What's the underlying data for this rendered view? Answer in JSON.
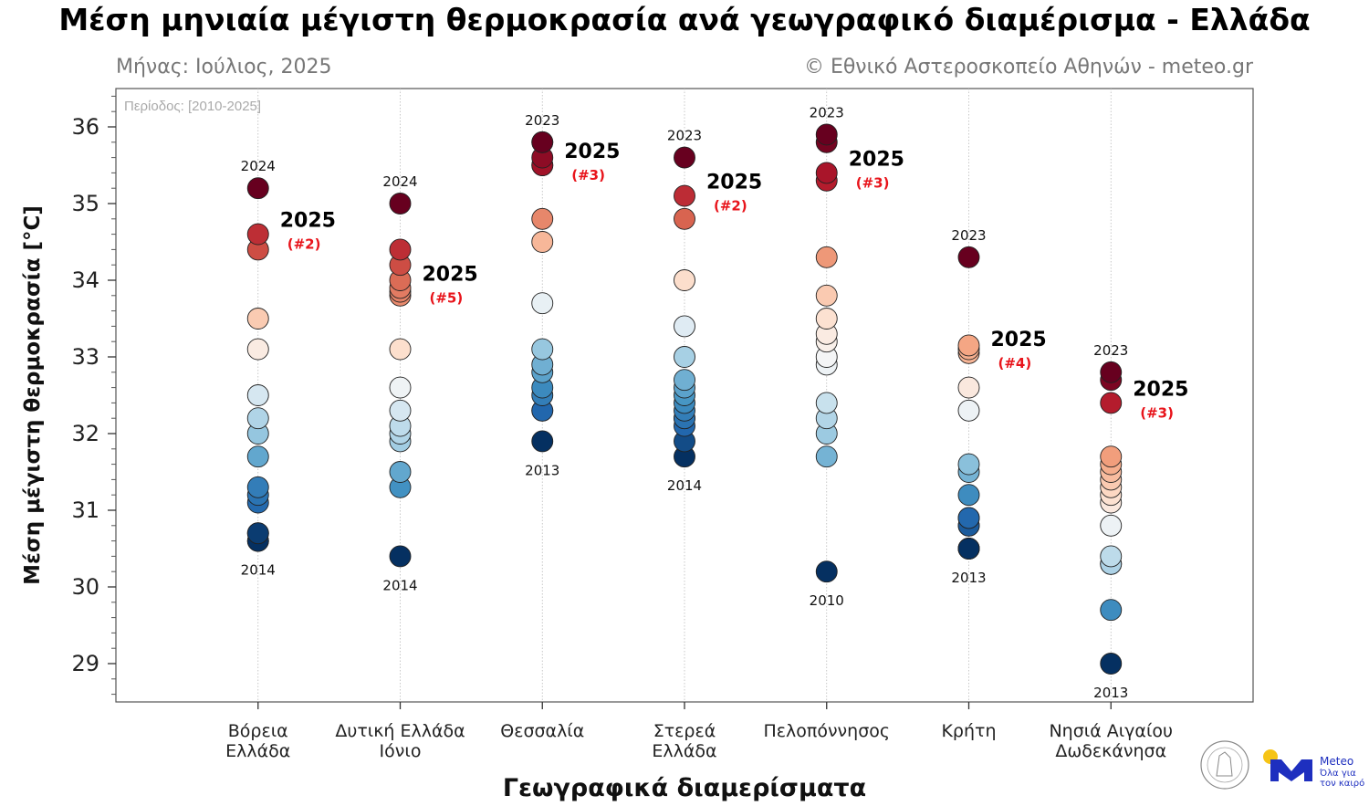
{
  "chart_data": {
    "type": "scatter",
    "title": "Μέση μηνιαία μέγιστη θερμοκρασία ανά γεωγραφικό διαμέρισμα - Ελλάδα",
    "subtitle_left": "Μήνας: Ιούλιος, 2025",
    "subtitle_right": "© Εθνικό Αστεροσκοπείο Αθηνών - meteo.gr",
    "period_label": "Περίοδος: [2010-2025]",
    "xlabel": "Γεωγραφικά διαμερίσματα",
    "ylabel": "Μέση μέγιστη θερμοκρασία [°C]",
    "ylim": [
      28.5,
      36.5
    ],
    "yticks": [
      "29",
      "30",
      "31",
      "32",
      "33",
      "34",
      "35",
      "36"
    ],
    "grid": "vertical dotted per category",
    "colormap": [
      "#053061",
      "#2166ac",
      "#4393c3",
      "#92c5de",
      "#d1e5f0",
      "#f7f7f7",
      "#fddbc7",
      "#f4a582",
      "#d6604d",
      "#b2182b",
      "#67001f"
    ],
    "highlight_year": "2025",
    "regions": [
      {
        "label": [
          "Βόρεια",
          "Ελλάδα"
        ],
        "values": [
          35.2,
          34.6,
          34.4,
          33.5,
          33.1,
          32.5,
          32.2,
          32.0,
          31.7,
          31.3,
          31.2,
          31.1,
          30.7,
          30.7,
          30.6,
          30.6
        ],
        "value_2025": 34.6,
        "rank_label": "(#2)",
        "max_year": "2024",
        "min_year": "2014"
      },
      {
        "label": [
          "Δυτική Ελλάδα",
          "Ιόνιο"
        ],
        "values": [
          35.0,
          34.4,
          34.2,
          34.0,
          33.9,
          33.85,
          33.8,
          33.1,
          32.6,
          32.3,
          32.1,
          32.0,
          31.9,
          31.5,
          31.3,
          30.4
        ],
        "value_2025": 33.9,
        "rank_label": "(#5)",
        "max_year": "2024",
        "min_year": "2014"
      },
      {
        "label": [
          "Θεσσαλία"
        ],
        "values": [
          35.8,
          35.8,
          35.6,
          35.5,
          35.5,
          34.8,
          34.5,
          33.7,
          33.1,
          32.9,
          32.8,
          32.6,
          32.5,
          32.3,
          32.3,
          31.9
        ],
        "value_2025": 35.5,
        "rank_label": "(#3)",
        "max_year": "2023",
        "min_year": "2013"
      },
      {
        "label": [
          "Στερεά",
          "Ελλάδα"
        ],
        "values": [
          35.6,
          35.1,
          34.8,
          34.0,
          33.4,
          33.0,
          32.7,
          32.6,
          32.5,
          32.4,
          32.3,
          32.2,
          32.2,
          32.1,
          31.9,
          31.7
        ],
        "value_2025": 35.1,
        "rank_label": "(#2)",
        "max_year": "2023",
        "min_year": "2014"
      },
      {
        "label": [
          "Πελοπόννησος"
        ],
        "values": [
          35.9,
          35.8,
          35.4,
          35.3,
          34.3,
          33.8,
          33.5,
          33.3,
          33.2,
          33.0,
          32.9,
          32.4,
          32.2,
          32.0,
          31.7,
          30.2
        ],
        "value_2025": 35.4,
        "rank_label": "(#3)",
        "max_year": "2023",
        "min_year": "2010"
      },
      {
        "label": [
          "Κρήτη"
        ],
        "values": [
          34.3,
          33.15,
          33.1,
          33.05,
          32.6,
          32.3,
          31.6,
          31.5,
          31.2,
          30.9,
          30.9,
          30.8,
          30.8,
          30.5,
          30.5,
          30.5
        ],
        "value_2025": 33.05,
        "rank_label": "(#4)",
        "max_year": "2023",
        "min_year": "2013"
      },
      {
        "label": [
          "Νησιά Αιγαίου",
          "Δωδεκάνησα"
        ],
        "values": [
          32.8,
          32.7,
          32.4,
          31.7,
          31.6,
          31.5,
          31.4,
          31.3,
          31.2,
          31.1,
          30.8,
          30.4,
          30.3,
          30.3,
          29.7,
          29.0
        ],
        "value_2025": 32.4,
        "rank_label": "(#3)",
        "max_year": "2023",
        "min_year": "2013"
      }
    ]
  },
  "logos": {
    "observatory": "Εθνικό Αστεροσκοπείο Αθηνών",
    "meteo_name": "Meteo",
    "meteo_tagline": "Όλα για τον καιρό",
    "meteo_blue": "#1e2fbf",
    "meteo_yellow": "#f6c416"
  }
}
